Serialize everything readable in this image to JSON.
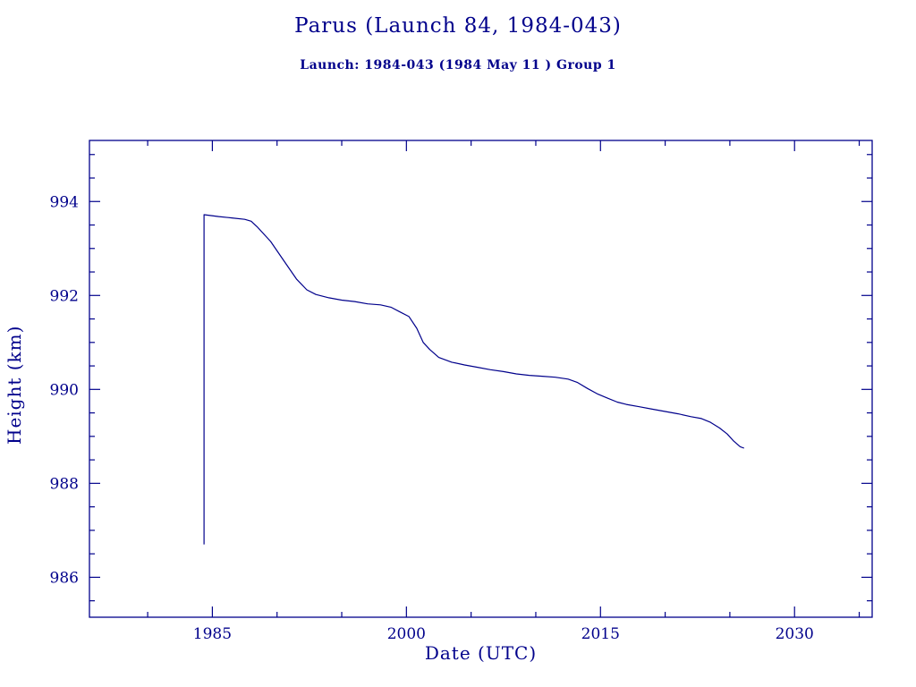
{
  "chart_data": {
    "type": "line",
    "title": "Parus (Launch 84, 1984-043)",
    "subtitle": "Launch: 1984-043  (1984 May 11 )  Group 1",
    "xlabel": "Date (UTC)",
    "ylabel": "Height (km)",
    "xlim": [
      1975.5,
      2036
    ],
    "ylim": [
      985.15,
      995.3
    ],
    "x_ticks": [
      1985,
      2000,
      2015,
      2030
    ],
    "x_minor_step": 5,
    "y_ticks": [
      986,
      988,
      990,
      992,
      994
    ],
    "y_minor_step": 0.5,
    "line_color": "#00008B",
    "frame_color": "#00008B",
    "legend": "none",
    "grid": false,
    "series": [
      {
        "name": "height_km",
        "points": [
          [
            1984.36,
            986.7
          ],
          [
            1984.36,
            993.72
          ],
          [
            1985.5,
            993.68
          ],
          [
            1986.5,
            993.65
          ],
          [
            1987.5,
            993.62
          ],
          [
            1988.0,
            993.58
          ],
          [
            1988.5,
            993.45
          ],
          [
            1989.5,
            993.15
          ],
          [
            1990.5,
            992.75
          ],
          [
            1991.5,
            992.35
          ],
          [
            1992.3,
            992.12
          ],
          [
            1993.0,
            992.02
          ],
          [
            1994.0,
            991.95
          ],
          [
            1995.0,
            991.9
          ],
          [
            1996.0,
            991.87
          ],
          [
            1997.0,
            991.82
          ],
          [
            1998.0,
            991.8
          ],
          [
            1998.8,
            991.75
          ],
          [
            1999.5,
            991.65
          ],
          [
            2000.2,
            991.55
          ],
          [
            2000.8,
            991.3
          ],
          [
            2001.3,
            991.0
          ],
          [
            2001.8,
            990.85
          ],
          [
            2002.5,
            990.68
          ],
          [
            2003.5,
            990.58
          ],
          [
            2004.5,
            990.52
          ],
          [
            2005.5,
            990.47
          ],
          [
            2006.5,
            990.42
          ],
          [
            2007.5,
            990.38
          ],
          [
            2008.5,
            990.33
          ],
          [
            2009.5,
            990.3
          ],
          [
            2010.5,
            990.28
          ],
          [
            2011.5,
            990.26
          ],
          [
            2012.5,
            990.22
          ],
          [
            2013.2,
            990.15
          ],
          [
            2014.0,
            990.02
          ],
          [
            2014.8,
            989.9
          ],
          [
            2015.5,
            989.82
          ],
          [
            2016.3,
            989.73
          ],
          [
            2017.0,
            989.68
          ],
          [
            2018.0,
            989.63
          ],
          [
            2019.0,
            989.58
          ],
          [
            2020.0,
            989.53
          ],
          [
            2021.0,
            989.48
          ],
          [
            2022.0,
            989.42
          ],
          [
            2022.8,
            989.38
          ],
          [
            2023.5,
            989.3
          ],
          [
            2024.2,
            989.18
          ],
          [
            2024.8,
            989.05
          ],
          [
            2025.3,
            988.9
          ],
          [
            2025.8,
            988.78
          ],
          [
            2026.1,
            988.75
          ]
        ]
      }
    ]
  }
}
